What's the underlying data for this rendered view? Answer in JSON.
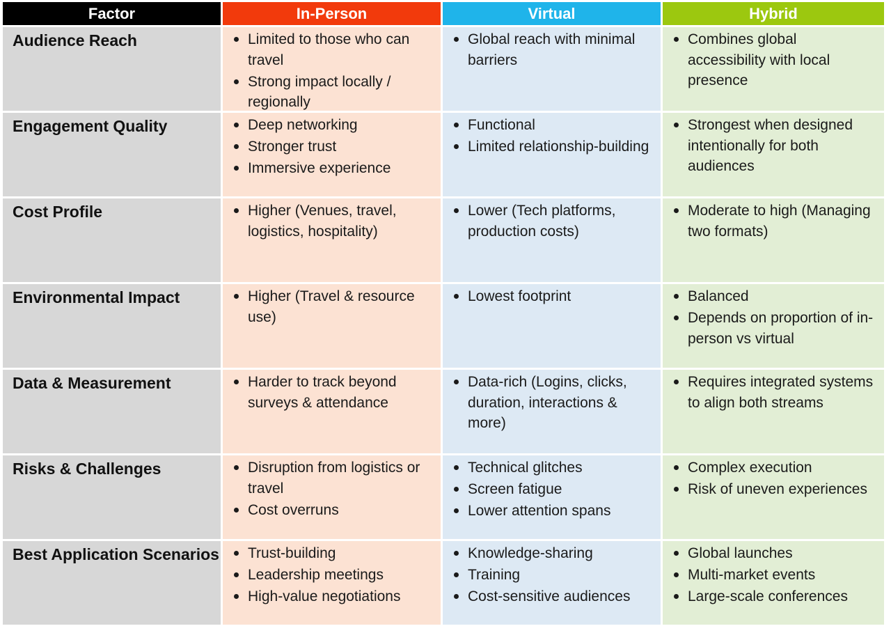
{
  "headers": {
    "factor": "Factor",
    "in_person": "In-Person",
    "virtual": "Virtual",
    "hybrid": "Hybrid"
  },
  "colors": {
    "factor_header": "#000000",
    "in_person_header": "#f23a0c",
    "virtual_header": "#1fb4ea",
    "hybrid_header": "#9cc80f",
    "factor_cell": "#d7d7d7",
    "in_person_cell": "#fce2d3",
    "virtual_cell": "#dde9f4",
    "hybrid_cell": "#e2eed5"
  },
  "rows": [
    {
      "factor": "Audience Reach",
      "in_person": [
        "Limited to those who can travel",
        "Strong impact locally / regionally"
      ],
      "virtual": [
        "Global reach with minimal barriers"
      ],
      "hybrid": [
        "Combines global accessibility with local presence"
      ]
    },
    {
      "factor": "Engagement Quality",
      "in_person": [
        "Deep networking",
        "Stronger trust",
        "Immersive experience"
      ],
      "virtual": [
        "Functional",
        "Limited relationship-building"
      ],
      "hybrid": [
        "Strongest when designed intentionally for both audiences"
      ]
    },
    {
      "factor": "Cost Profile",
      "in_person": [
        "Higher (Venues, travel, logistics, hospitality)"
      ],
      "virtual": [
        "Lower (Tech platforms, production costs)"
      ],
      "hybrid": [
        "Moderate to high (Managing two formats)"
      ]
    },
    {
      "factor": "Environmental Impact",
      "in_person": [
        "Higher (Travel & resource use)"
      ],
      "virtual": [
        "Lowest footprint"
      ],
      "hybrid": [
        "Balanced",
        "Depends on proportion of in-person vs virtual"
      ]
    },
    {
      "factor": "Data & Measurement",
      "in_person": [
        "Harder to track beyond surveys & attendance"
      ],
      "virtual": [
        "Data-rich (Logins, clicks, duration, interactions & more)"
      ],
      "hybrid": [
        "Requires integrated systems to align both streams"
      ]
    },
    {
      "factor": "Risks & Challenges",
      "in_person": [
        "Disruption from logistics or travel",
        "Cost overruns"
      ],
      "virtual": [
        "Technical glitches",
        "Screen fatigue",
        "Lower attention spans"
      ],
      "hybrid": [
        "Complex execution",
        "Risk of uneven experiences"
      ]
    },
    {
      "factor": "Best Application Scenarios",
      "in_person": [
        "Trust-building",
        "Leadership meetings",
        "High-value negotiations"
      ],
      "virtual": [
        "Knowledge-sharing",
        "Training",
        "Cost-sensitive audiences"
      ],
      "hybrid": [
        "Global launches",
        "Multi-market events",
        "Large-scale conferences"
      ]
    }
  ]
}
